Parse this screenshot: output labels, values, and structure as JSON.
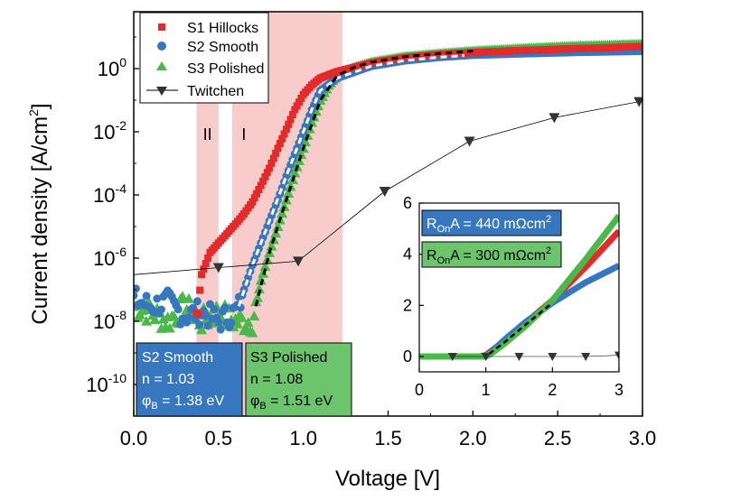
{
  "chart_data": [
    {
      "type": "scatter",
      "xlabel": "Voltage [V]",
      "ylabel_main": "Current density [A/cm",
      "ylabel_sup": "2",
      "ylabel_end": "]",
      "xlim": [
        0.0,
        3.0
      ],
      "ylim_log10": [
        -11,
        1.8
      ],
      "y_scale": "log",
      "x_ticks": [
        "0.0",
        "0.5",
        "1.0",
        "1.5",
        "2.0",
        "2.5",
        "3.0"
      ],
      "y_ticks": [
        {
          "base": "10",
          "exp": "0",
          "log": 0
        },
        {
          "base": "10",
          "exp": "-2",
          "log": -2
        },
        {
          "base": "10",
          "exp": "-4",
          "log": -4
        },
        {
          "base": "10",
          "exp": "-6",
          "log": -6
        },
        {
          "base": "10",
          "exp": "-8",
          "log": -8
        },
        {
          "base": "10",
          "exp": "-10",
          "log": -10
        }
      ],
      "shaded_regions": [
        {
          "label": "II",
          "x": [
            0.37,
            0.5
          ]
        },
        {
          "label": "I",
          "x": [
            0.58,
            1.23
          ]
        }
      ],
      "legend_position": "top-left",
      "series": [
        {
          "name": "S1 Hillocks",
          "color": "#e32b2b",
          "marker": "square",
          "x": [
            0.37,
            0.4,
            0.45,
            0.5,
            0.55,
            0.6,
            0.65,
            0.7,
            0.75,
            0.8,
            0.85,
            0.9,
            0.95,
            1.0,
            1.05,
            1.1,
            1.2,
            1.4,
            1.6,
            1.8,
            2.0,
            2.2,
            2.5,
            2.8,
            3.0
          ],
          "y": [
            1e-08,
            3e-07,
            1.5e-06,
            3e-06,
            6e-06,
            1.2e-05,
            2.5e-05,
            6e-05,
            0.0002,
            0.0007,
            0.003,
            0.012,
            0.05,
            0.15,
            0.3,
            0.5,
            0.8,
            1.5,
            2.2,
            2.8,
            3.2,
            3.6,
            4.1,
            4.6,
            5.0
          ]
        },
        {
          "name": "S2 Smooth",
          "color": "#3777c0",
          "marker": "circle",
          "x": [
            0.0,
            0.1,
            0.2,
            0.3,
            0.4,
            0.5,
            0.6,
            0.62,
            0.65,
            0.7,
            0.75,
            0.8,
            0.85,
            0.9,
            0.95,
            1.0,
            1.05,
            1.1,
            1.2,
            1.4,
            1.6,
            1.8,
            2.0,
            2.3,
            2.6,
            3.0
          ],
          "y": [
            5e-08,
            3e-08,
            4e-08,
            1.5e-08,
            2e-08,
            1e-08,
            2e-08,
            3e-08,
            1e-07,
            6e-07,
            3e-06,
            1.5e-05,
            7e-05,
            0.0004,
            0.002,
            0.01,
            0.05,
            0.2,
            0.5,
            1.2,
            1.8,
            2.3,
            2.7,
            3.0,
            3.3,
            3.6
          ]
        },
        {
          "name": "S3 Polished",
          "color": "#4ab84a",
          "marker": "triangle",
          "x": [
            0.0,
            0.1,
            0.2,
            0.3,
            0.4,
            0.5,
            0.6,
            0.7,
            0.72,
            0.75,
            0.8,
            0.85,
            0.9,
            0.95,
            1.0,
            1.05,
            1.1,
            1.15,
            1.2,
            1.3,
            1.4,
            1.6,
            1.8,
            2.0,
            2.3,
            2.6,
            3.0
          ],
          "y": [
            3e-08,
            2e-08,
            1e-08,
            3e-08,
            1e-08,
            2e-08,
            1e-08,
            1e-08,
            3e-08,
            2e-07,
            1.5e-06,
            1e-05,
            7e-05,
            0.0005,
            0.003,
            0.02,
            0.1,
            0.3,
            0.6,
            1.1,
            1.6,
            2.4,
            3.0,
            3.6,
            4.4,
            5.2,
            6.0
          ]
        },
        {
          "name": "Twitchen",
          "color": "#000000",
          "marker": "triangle-down",
          "x": [
            0.0,
            0.5,
            0.97,
            1.48,
            1.98,
            2.48,
            2.98
          ],
          "y": [
            3e-07,
            5e-07,
            8e-07,
            0.00013,
            0.005,
            0.028,
            0.09
          ]
        }
      ],
      "fits": [
        {
          "series": "S2 Smooth",
          "color": "#ffffff",
          "style": "dashed",
          "x": [
            0.62,
            0.7,
            0.8,
            0.9,
            1.0,
            1.05,
            1.1,
            1.2,
            1.4,
            1.6,
            1.8,
            1.95
          ],
          "y": [
            3e-08,
            6e-07,
            1.5e-05,
            0.0004,
            0.01,
            0.05,
            0.2,
            0.5,
            1.2,
            1.8,
            2.3,
            2.6
          ]
        },
        {
          "series": "S3 Polished",
          "color": "#000000",
          "style": "dashed",
          "x": [
            0.72,
            0.8,
            0.9,
            1.0,
            1.1,
            1.2,
            1.3,
            1.4,
            1.6,
            1.8,
            2.0
          ],
          "y": [
            3e-08,
            1.5e-06,
            7e-05,
            0.003,
            0.1,
            0.6,
            1.1,
            1.6,
            2.4,
            3.0,
            3.6
          ]
        }
      ],
      "info_boxes": [
        {
          "title": "S2 Smooth",
          "n_label": "n = 1.03",
          "phi_label": "φ",
          "phi_sub": "B",
          "phi_value": " = 1.38 eV",
          "color": "#3777c0",
          "text_color": "#ffffff"
        },
        {
          "title": "S3 Polished",
          "n_label": "n = 1.08",
          "phi_label": "φ",
          "phi_sub": "B",
          "phi_value": " = 1.51 eV",
          "color": "#4ab84a",
          "text_color": "#000000"
        }
      ]
    },
    {
      "type": "line",
      "position": "inset",
      "xlim": [
        0,
        3
      ],
      "ylim": [
        -0.6,
        6
      ],
      "x_ticks": [
        "0",
        "1",
        "2",
        "3"
      ],
      "y_ticks": [
        "0",
        "2",
        "4",
        "6"
      ],
      "annotations": [
        {
          "pre": "R",
          "sub": "On",
          "post": "A = 440 mΩcm",
          "sup": "2",
          "color": "#3777c0",
          "text_color": "#ffffff"
        },
        {
          "pre": "R",
          "sub": "On",
          "post": "A = 300 mΩcm",
          "sup": "2",
          "color": "#4ab84a",
          "text_color": "#000000"
        }
      ],
      "series": [
        {
          "name": "S1 Hillocks",
          "color": "#e32b2b",
          "x": [
            0,
            0.9,
            1.0,
            1.2,
            1.5,
            2.0,
            2.5,
            3.0
          ],
          "y": [
            0,
            0,
            0.05,
            0.45,
            1.1,
            2.2,
            3.5,
            4.9
          ]
        },
        {
          "name": "S2 Smooth",
          "color": "#3777c0",
          "x": [
            0,
            0.95,
            1.05,
            1.3,
            1.6,
            2.0,
            2.5,
            3.0
          ],
          "y": [
            0,
            0,
            0.1,
            0.7,
            1.35,
            2.1,
            2.9,
            3.55
          ]
        },
        {
          "name": "S3 Polished",
          "color": "#4ab84a",
          "x": [
            0,
            1.0,
            1.1,
            1.3,
            1.6,
            2.0,
            2.5,
            3.0
          ],
          "y": [
            0,
            0,
            0.15,
            0.55,
            1.2,
            2.2,
            3.8,
            5.5
          ]
        },
        {
          "name": "fit",
          "color": "#000000",
          "dashed": true,
          "x": [
            1.05,
            1.3,
            1.6,
            2.0
          ],
          "y": [
            0.1,
            0.6,
            1.25,
            2.1
          ]
        },
        {
          "name": "Twitchen",
          "color": "#000000",
          "marker": "triangle-down",
          "x": [
            0.5,
            1.0,
            1.5,
            2.0,
            2.5,
            3.0
          ],
          "y": [
            0,
            0,
            0,
            0,
            0,
            0.05
          ]
        }
      ]
    }
  ]
}
